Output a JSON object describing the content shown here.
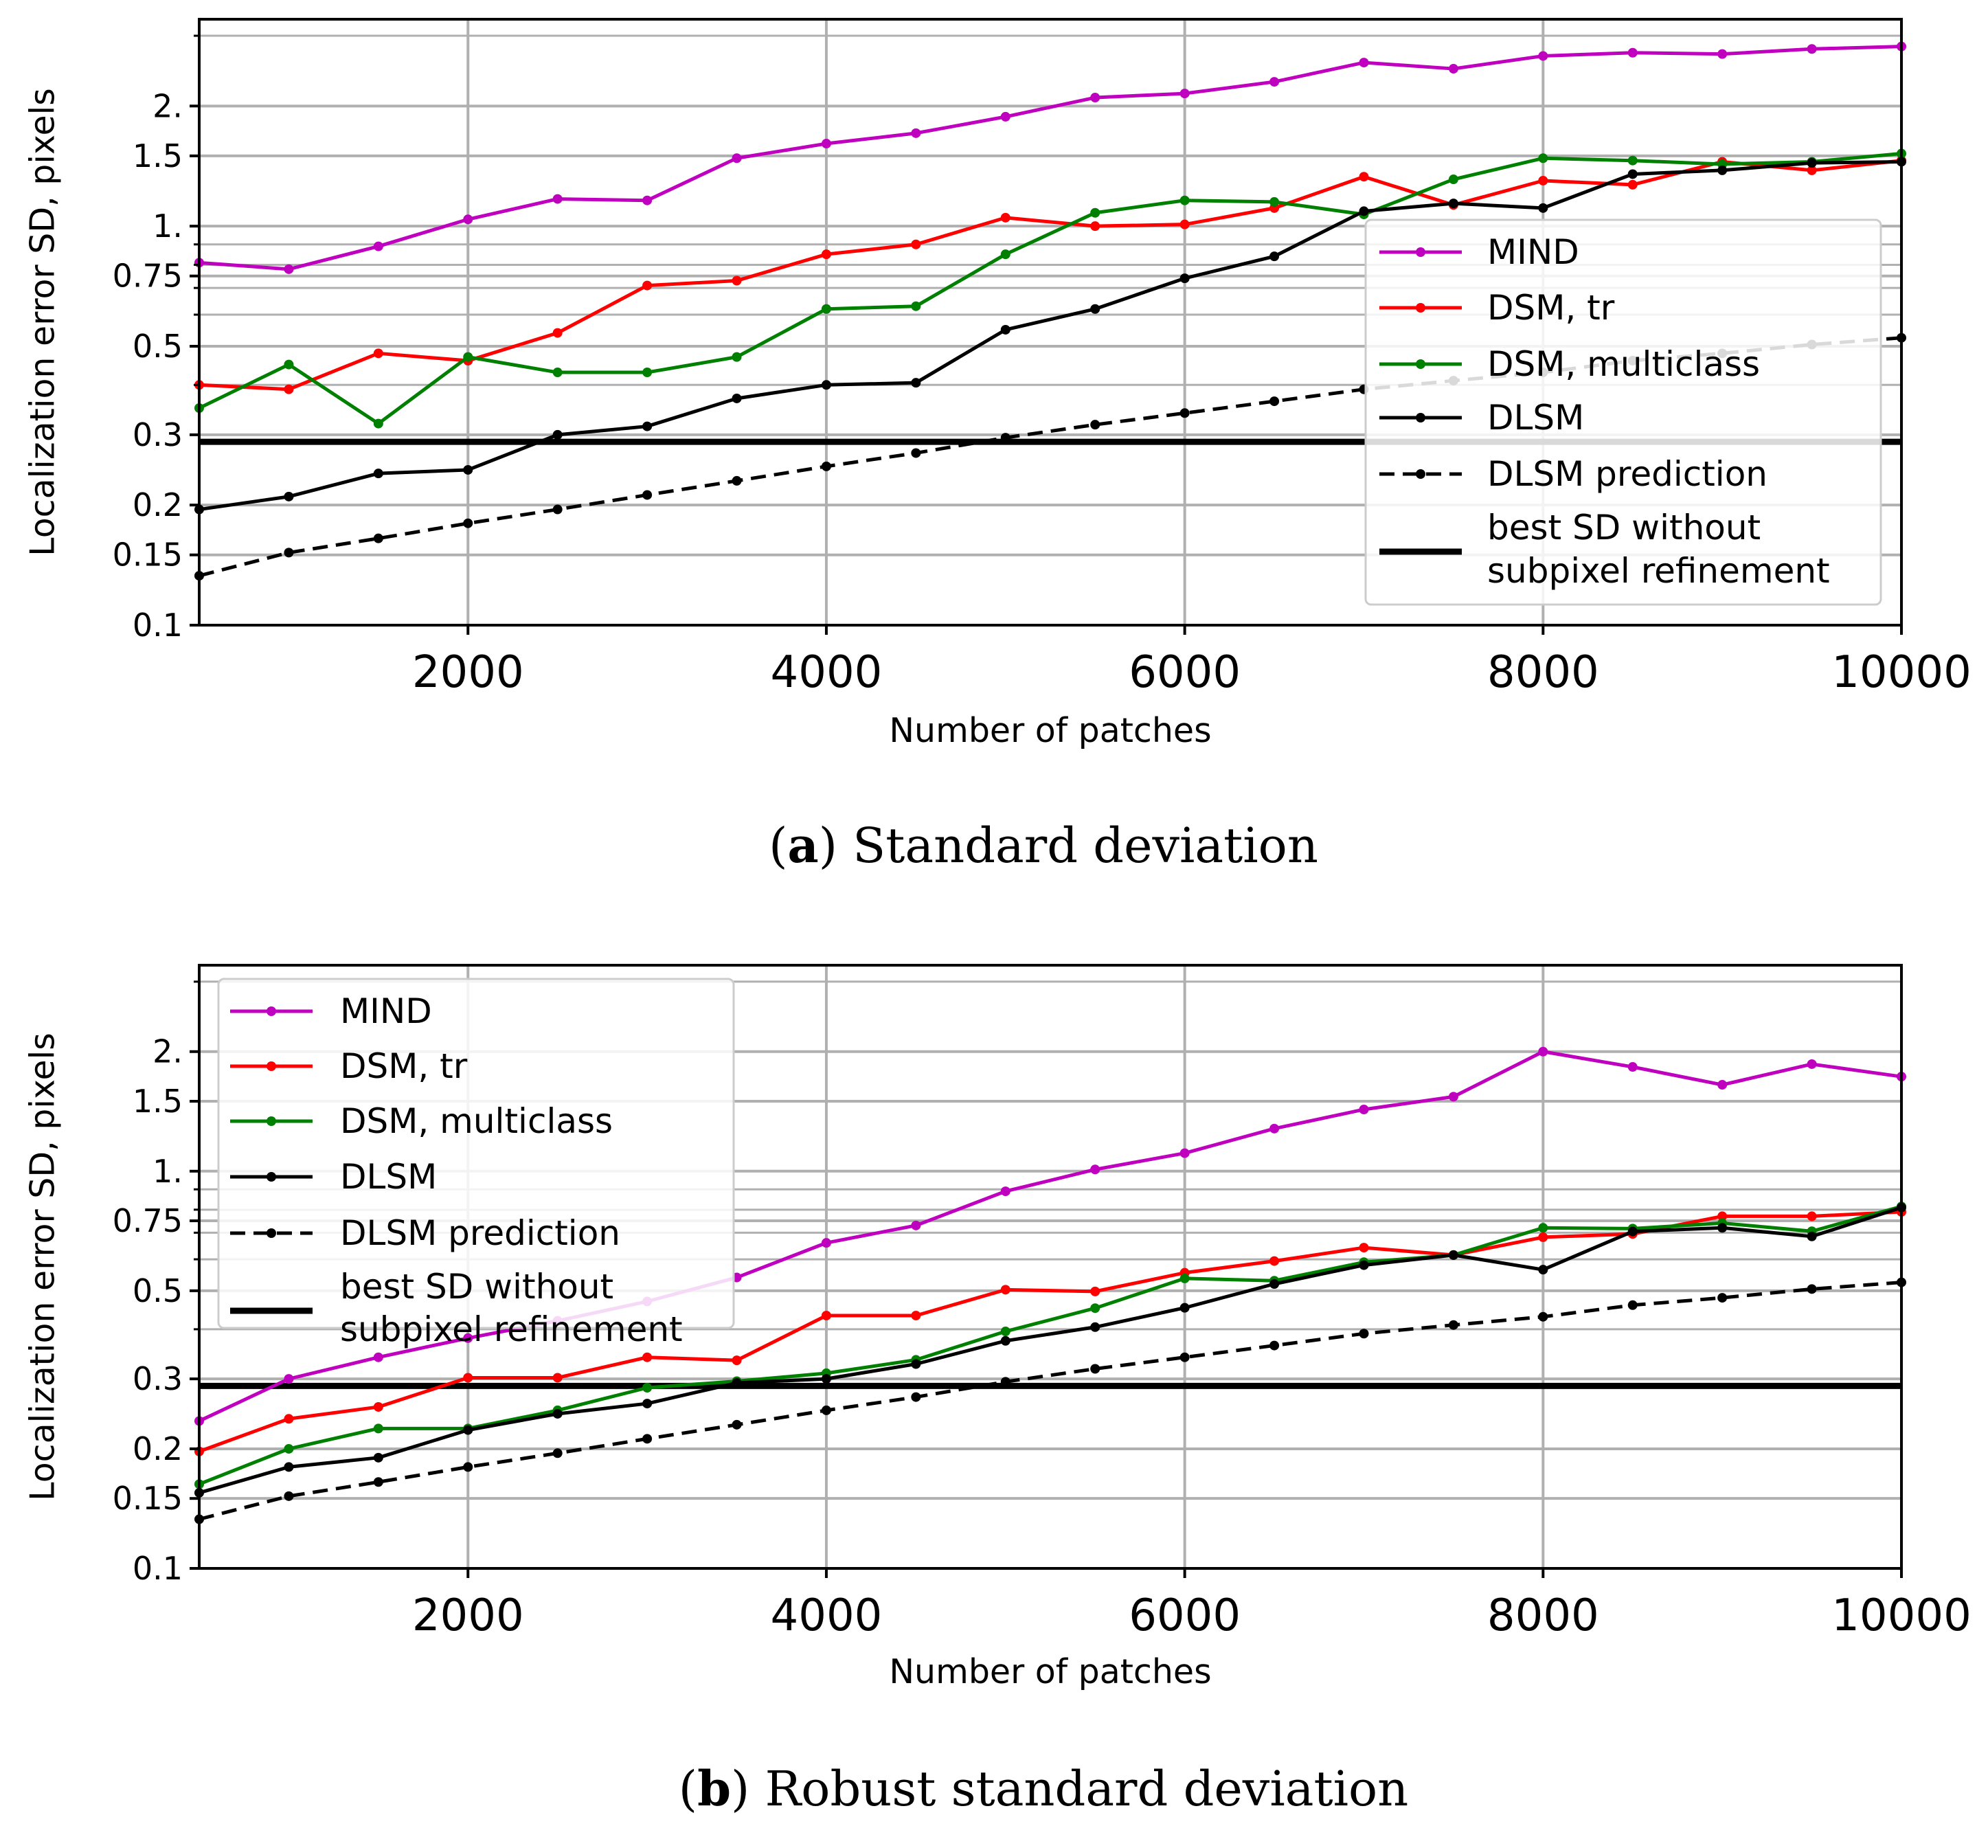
{
  "chart_data": [
    {
      "type": "line",
      "caption_letter": "a",
      "caption_text": "Standard deviation",
      "xlabel": "Number of patches",
      "ylabel": "Localization error SD, pixels",
      "xlim": [
        500,
        10000
      ],
      "ylim": [
        0.1,
        3.3
      ],
      "yscale": "log",
      "grid": true,
      "x_ticks": [
        2000,
        4000,
        6000,
        8000,
        10000
      ],
      "y_ticks": [
        {
          "value": 0.1,
          "label": "0.1"
        },
        {
          "value": 0.15,
          "label": "0.15"
        },
        {
          "value": 0.2,
          "label": "0.2"
        },
        {
          "value": 0.3,
          "label": "0.3"
        },
        {
          "value": 0.5,
          "label": "0.5"
        },
        {
          "value": 0.75,
          "label": "0.75"
        },
        {
          "value": 1.0,
          "label": "1."
        },
        {
          "value": 1.5,
          "label": "1.5"
        },
        {
          "value": 2.0,
          "label": "2."
        }
      ],
      "minor_y_gridlines": [
        0.4,
        0.6,
        0.7,
        0.8,
        0.9,
        3.0
      ],
      "legend_position": "right",
      "x": [
        500,
        1000,
        1500,
        2000,
        2500,
        3000,
        3500,
        4000,
        4500,
        5000,
        5500,
        6000,
        6500,
        7000,
        7500,
        8000,
        8500,
        9000,
        9500,
        10000
      ],
      "series": [
        {
          "name": "MIND",
          "color": "#bf00bf",
          "style": "solid",
          "values": [
            0.81,
            0.78,
            0.89,
            1.04,
            1.17,
            1.16,
            1.48,
            1.61,
            1.71,
            1.88,
            2.1,
            2.15,
            2.3,
            2.57,
            2.48,
            2.67,
            2.72,
            2.7,
            2.78,
            2.82
          ]
        },
        {
          "name": "DSM, tr",
          "color": "#ff0000",
          "style": "solid",
          "values": [
            0.4,
            0.39,
            0.48,
            0.46,
            0.54,
            0.71,
            0.73,
            0.85,
            0.9,
            1.05,
            1.0,
            1.01,
            1.11,
            1.33,
            1.13,
            1.3,
            1.27,
            1.45,
            1.38,
            1.46
          ]
        },
        {
          "name": "DSM, multiclass",
          "color": "#008000",
          "style": "solid",
          "values": [
            0.35,
            0.45,
            0.32,
            0.47,
            0.43,
            0.43,
            0.47,
            0.62,
            0.63,
            0.85,
            1.08,
            1.16,
            1.15,
            1.07,
            1.31,
            1.48,
            1.46,
            1.43,
            1.45,
            1.52
          ]
        },
        {
          "name": "DLSM",
          "color": "#000000",
          "style": "solid",
          "values": [
            0.195,
            0.21,
            0.24,
            0.245,
            0.3,
            0.315,
            0.37,
            0.4,
            0.405,
            0.55,
            0.62,
            0.74,
            0.84,
            1.09,
            1.14,
            1.11,
            1.35,
            1.38,
            1.44,
            1.45
          ]
        },
        {
          "name": "DLSM prediction",
          "color": "#000000",
          "style": "dashed",
          "values": [
            0.133,
            0.152,
            0.165,
            0.18,
            0.195,
            0.212,
            0.23,
            0.25,
            0.27,
            0.295,
            0.318,
            0.34,
            0.364,
            0.39,
            0.41,
            0.43,
            0.46,
            0.48,
            0.505,
            0.525
          ]
        }
      ],
      "reference_line": {
        "name": "best SD without subpixel refinement",
        "name_line1": "best SD without",
        "name_line2": "subpixel refinement",
        "value": 0.288,
        "color": "#000000"
      }
    },
    {
      "type": "line",
      "caption_letter": "b",
      "caption_text": "Robust standard deviation",
      "xlabel": "Number of patches",
      "ylabel": "Localization error SD, pixels",
      "xlim": [
        500,
        10000
      ],
      "ylim": [
        0.1,
        3.3
      ],
      "yscale": "log",
      "grid": true,
      "x_ticks": [
        2000,
        4000,
        6000,
        8000,
        10000
      ],
      "y_ticks": [
        {
          "value": 0.1,
          "label": "0.1"
        },
        {
          "value": 0.15,
          "label": "0.15"
        },
        {
          "value": 0.2,
          "label": "0.2"
        },
        {
          "value": 0.3,
          "label": "0.3"
        },
        {
          "value": 0.5,
          "label": "0.5"
        },
        {
          "value": 0.75,
          "label": "0.75"
        },
        {
          "value": 1.0,
          "label": "1."
        },
        {
          "value": 1.5,
          "label": "1.5"
        },
        {
          "value": 2.0,
          "label": "2."
        }
      ],
      "minor_y_gridlines": [
        0.4,
        0.6,
        0.7,
        0.8,
        0.9,
        3.0
      ],
      "legend_position": "top-left",
      "x": [
        500,
        1000,
        1500,
        2000,
        2500,
        3000,
        3500,
        4000,
        4500,
        5000,
        5500,
        6000,
        6500,
        7000,
        7500,
        8000,
        8500,
        9000,
        9500,
        10000
      ],
      "series": [
        {
          "name": "MIND",
          "color": "#bf00bf",
          "style": "solid",
          "values": [
            0.235,
            0.3,
            0.34,
            0.38,
            0.42,
            0.47,
            0.54,
            0.66,
            0.73,
            0.89,
            1.01,
            1.11,
            1.28,
            1.43,
            1.54,
            2.0,
            1.83,
            1.65,
            1.86,
            1.73
          ]
        },
        {
          "name": "DSM, tr",
          "color": "#ff0000",
          "style": "solid",
          "values": [
            0.197,
            0.238,
            0.255,
            0.302,
            0.302,
            0.34,
            0.334,
            0.433,
            0.433,
            0.503,
            0.498,
            0.555,
            0.594,
            0.642,
            0.615,
            0.682,
            0.695,
            0.77,
            0.77,
            0.79
          ]
        },
        {
          "name": "DSM, multiclass",
          "color": "#008000",
          "style": "solid",
          "values": [
            0.163,
            0.2,
            0.225,
            0.225,
            0.25,
            0.285,
            0.296,
            0.31,
            0.335,
            0.395,
            0.452,
            0.537,
            0.53,
            0.59,
            0.615,
            0.72,
            0.717,
            0.74,
            0.706,
            0.815
          ]
        },
        {
          "name": "DLSM",
          "color": "#000000",
          "style": "solid",
          "values": [
            0.155,
            0.18,
            0.19,
            0.223,
            0.245,
            0.26,
            0.293,
            0.3,
            0.327,
            0.374,
            0.405,
            0.453,
            0.52,
            0.58,
            0.615,
            0.565,
            0.705,
            0.72,
            0.685,
            0.81
          ]
        },
        {
          "name": "DLSM prediction",
          "color": "#000000",
          "style": "dashed",
          "values": [
            0.133,
            0.152,
            0.165,
            0.18,
            0.195,
            0.212,
            0.23,
            0.25,
            0.27,
            0.295,
            0.318,
            0.34,
            0.364,
            0.39,
            0.41,
            0.43,
            0.46,
            0.48,
            0.505,
            0.525
          ]
        }
      ],
      "reference_line": {
        "name": "best SD without subpixel refinement",
        "name_line1": "best SD without",
        "name_line2": "subpixel refinement",
        "value": 0.288,
        "color": "#000000"
      }
    }
  ]
}
